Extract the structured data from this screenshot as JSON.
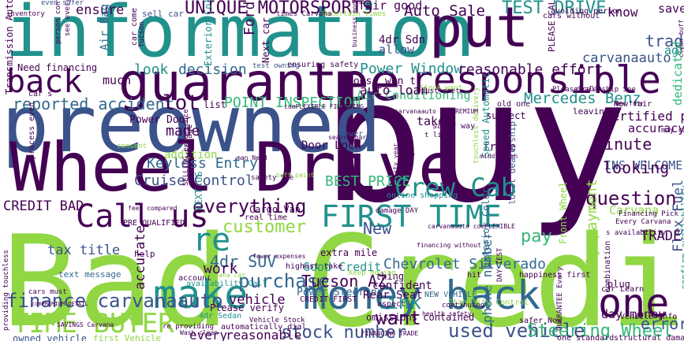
{
  "palette": {
    "background": "#ffffff",
    "dark_purple": "#440154",
    "indigo": "#3b528b",
    "blue": "#31688e",
    "teal": "#21918c",
    "sea_green": "#35b779",
    "green": "#5ec962",
    "lime": "#90d743",
    "yellow": "#fde725"
  },
  "words": [
    {
      "t": "Bad Credit",
      "c": "lime"
    },
    {
      "t": "buy",
      "c": "dark_purple"
    },
    {
      "t": "information",
      "c": "teal"
    },
    {
      "t": "preowned",
      "c": "indigo"
    },
    {
      "t": "Wheel Drive",
      "c": "dark_purple"
    },
    {
      "t": "put",
      "c": "dark_purple"
    },
    {
      "t": "back",
      "c": "dark_purple"
    },
    {
      "t": "guarantee",
      "c": "dark_purple"
    },
    {
      "t": "responsible",
      "c": "dark_purple"
    },
    {
      "t": "make",
      "c": "teal"
    },
    {
      "t": "money back",
      "c": "blue"
    },
    {
      "t": "one",
      "c": "dark_purple"
    },
    {
      "t": "Call us",
      "c": "dark_purple"
    },
    {
      "t": "FIRST TIME",
      "c": "teal"
    },
    {
      "t": "Crew Cab",
      "c": "teal"
    },
    {
      "t": "TIME BUYER",
      "c": "lime"
    },
    {
      "t": "used vehicle",
      "c": "indigo"
    },
    {
      "t": "UNIQUE MOTORSPORTS",
      "c": "dark_purple"
    },
    {
      "t": "TEST DRIVE",
      "c": "teal"
    },
    {
      "t": "Auto Sale",
      "c": "dark_purple"
    },
    {
      "t": "ensure",
      "c": "dark_purple"
    },
    {
      "t": "reported accident",
      "c": "blue"
    },
    {
      "t": "POINT INSPECTION",
      "c": "sea_green"
    },
    {
      "t": "Mercedes Benz",
      "c": "teal"
    },
    {
      "t": "Power Window",
      "c": "teal"
    },
    {
      "t": "reasonable effort",
      "c": "dark_purple"
    },
    {
      "t": "Air Conditioning",
      "c": "sea_green"
    },
    {
      "t": "auto loan",
      "c": "dark_purple"
    },
    {
      "t": "carvanaauto",
      "c": "indigo"
    },
    {
      "t": "finance carvanaauto",
      "c": "indigo"
    },
    {
      "t": "Steering Wheel",
      "c": "sea_green"
    },
    {
      "t": "stock number",
      "c": "indigo"
    },
    {
      "t": "everything",
      "c": "dark_purple"
    },
    {
      "t": "question",
      "c": "dark_purple"
    },
    {
      "t": "customer",
      "c": "lime"
    },
    {
      "t": "Cruise Control",
      "c": "indigo"
    },
    {
      "t": "Keyless Entry",
      "c": "blue"
    },
    {
      "t": "BEST PRICE",
      "c": "sea_green"
    },
    {
      "t": "purchase",
      "c": "blue"
    },
    {
      "t": "4dr SUV",
      "c": "blue"
    },
    {
      "t": "Tucson AZ",
      "c": "dark_purple"
    },
    {
      "t": "Chevrolet Silverado",
      "c": "blue"
    },
    {
      "t": "phone number",
      "c": "blue"
    },
    {
      "t": "monthly payment",
      "c": "lime"
    },
    {
      "t": "Flex Fuel",
      "c": "indigo"
    },
    {
      "t": "TRADE INS",
      "c": "dark_purple"
    },
    {
      "t": "INS WELCOME",
      "c": "indigo"
    },
    {
      "t": "minute",
      "c": "dark_purple"
    },
    {
      "t": "looking",
      "c": "dark_purple"
    },
    {
      "t": "accuracy",
      "c": "dark_purple"
    },
    {
      "t": "Certified pre",
      "c": "dark_purple"
    },
    {
      "t": "CREDIT BAD",
      "c": "dark_purple"
    },
    {
      "t": "tax title",
      "c": "indigo"
    },
    {
      "t": "work",
      "c": "dark_purple"
    },
    {
      "t": "link",
      "c": "teal"
    },
    {
      "t": "want",
      "c": "dark_purple"
    },
    {
      "t": "vehicle",
      "c": "dark_purple"
    },
    {
      "t": "accurate",
      "c": "dark_purple"
    },
    {
      "t": "Good Credit",
      "c": "teal"
    },
    {
      "t": "Power Steering",
      "c": "blue"
    },
    {
      "t": "Rear Seat",
      "c": "dark_purple"
    },
    {
      "t": "lot",
      "c": "dark_purple"
    },
    {
      "t": "look",
      "c": "teal"
    },
    {
      "t": "decision",
      "c": "blue"
    },
    {
      "t": "made",
      "c": "dark_purple"
    },
    {
      "t": "much",
      "c": "dark_purple"
    },
    {
      "t": "Door Lock",
      "c": "dark_purple"
    },
    {
      "t": "Power Door",
      "c": "dark_purple"
    },
    {
      "t": "addition",
      "c": "lime"
    },
    {
      "t": "New",
      "c": "indigo"
    },
    {
      "t": "re",
      "c": "teal"
    },
    {
      "t": "pay",
      "c": "sea_green"
    },
    {
      "t": "Carvana",
      "c": "lime"
    },
    {
      "t": "error",
      "c": "indigo"
    },
    {
      "t": "day money",
      "c": "dark_purple"
    },
    {
      "t": "frame",
      "c": "dark_purple"
    },
    {
      "t": "fair good",
      "c": "dark_purple"
    },
    {
      "t": "take",
      "c": "dark_purple"
    },
    {
      "t": "Ford F",
      "c": "dark_purple"
    },
    {
      "t": "trade",
      "c": "indigo"
    },
    {
      "t": "agree",
      "c": "teal"
    },
    {
      "t": "dedicated",
      "c": "sea_green"
    },
    {
      "t": "know",
      "c": "dark_purple"
    },
    {
      "t": "save",
      "c": "dark_purple"
    },
    {
      "t": "4dr Sdn",
      "c": "dark_purple"
    },
    {
      "t": "allow",
      "c": "indigo"
    },
    {
      "t": "Air Bag",
      "c": "blue"
    },
    {
      "t": "won t",
      "c": "dark_purple"
    },
    {
      "t": "goes",
      "c": "dark_purple"
    },
    {
      "t": "Need financing",
      "c": "dark_purple"
    },
    {
      "t": "Transmission Automatic",
      "c": "dark_purple"
    },
    {
      "t": "Exterior Color",
      "c": "teal"
    },
    {
      "t": "Next car",
      "c": "dark_purple"
    },
    {
      "t": "Front Wheel",
      "c": "lime"
    },
    {
      "t": "Speed Automatic",
      "c": "teal"
    },
    {
      "t": "local dealership",
      "c": "indigo"
    },
    {
      "t": "cars without",
      "c": "dark_purple"
    },
    {
      "t": "avoiding person",
      "c": "dark_purple"
    },
    {
      "t": "PLEASE CALL",
      "c": "dark_purple"
    },
    {
      "t": "sell car",
      "c": "indigo"
    },
    {
      "t": "inventory",
      "c": "dark_purple"
    },
    {
      "t": "even safer",
      "c": "indigo"
    },
    {
      "t": "Uncertain times",
      "c": "lime"
    },
    {
      "t": "times Carvana",
      "c": "dark_purple"
    },
    {
      "t": "ensuring safety",
      "c": "dark_purple"
    },
    {
      "t": "test owning",
      "c": "indigo"
    },
    {
      "t": "New fair",
      "c": "dark_purple"
    },
    {
      "t": "leaving",
      "c": "dark_purple"
    },
    {
      "t": "comFLEXIBLE FINANCING",
      "c": "dark_purple"
    },
    {
      "t": "real time",
      "c": "dark_purple"
    },
    {
      "t": "Cargo Van",
      "c": "dark_purple"
    },
    {
      "t": "extra mile",
      "c": "dark_purple"
    },
    {
      "t": "highest take",
      "c": "dark_purple"
    },
    {
      "t": "confident",
      "c": "dark_purple"
    },
    {
      "t": "thing",
      "c": "dark_purple"
    },
    {
      "t": "CREDIT FIRST",
      "c": "dark_purple"
    },
    {
      "t": "NEW VEHICLE",
      "c": "blue"
    },
    {
      "t": "Stability Control",
      "c": "lime"
    },
    {
      "t": "omissions contained",
      "c": "dark_purple"
    },
    {
      "t": "text message",
      "c": "blue"
    },
    {
      "t": "help",
      "c": "dark_purple"
    },
    {
      "t": "account",
      "c": "dark_purple"
    },
    {
      "t": "availability Call",
      "c": "teal"
    },
    {
      "t": "Please verify",
      "c": "dark_purple"
    },
    {
      "t": "4dr Sedan",
      "c": "teal"
    },
    {
      "t": "automatically dial",
      "c": "dark_purple"
    },
    {
      "t": "owned vehicle",
      "c": "indigo"
    },
    {
      "t": "first Vehicle",
      "c": "lime"
    },
    {
      "t": "every",
      "c": "dark_purple"
    },
    {
      "t": "reasonable",
      "c": "dark_purple"
    },
    {
      "t": "one standard",
      "c": "dark_purple"
    },
    {
      "t": "structural damage",
      "c": "dark_purple"
    },
    {
      "t": "safer Now",
      "c": "dark_purple"
    },
    {
      "t": "Vehicle Info",
      "c": "dark_purple"
    },
    {
      "t": "car Learn",
      "c": "dark_purple"
    },
    {
      "t": "combination",
      "c": "dark_purple"
    },
    {
      "t": "plug",
      "c": "dark_purple"
    },
    {
      "t": "confirm availability",
      "c": "teal"
    },
    {
      "t": "may call",
      "c": "dark_purple"
    },
    {
      "t": "subject",
      "c": "dark_purple"
    },
    {
      "t": "old one",
      "c": "dark_purple"
    },
    {
      "t": "touchless delivery",
      "c": "lime"
    },
    {
      "t": "safer way",
      "c": "dark_purple"
    },
    {
      "t": "online shopping",
      "c": "teal"
    },
    {
      "t": "damage DAY",
      "c": "dark_purple"
    },
    {
      "t": "safety See",
      "c": "dark_purple"
    },
    {
      "t": "search bar",
      "c": "dark_purple"
    },
    {
      "t": "PRE QUALIFIED",
      "c": "dark_purple"
    },
    {
      "t": "TEXT US",
      "c": "teal"
    },
    {
      "t": "SELLING experience",
      "c": "dark_purple"
    },
    {
      "t": "consent",
      "c": "lime"
    },
    {
      "t": "process even",
      "c": "dark_purple"
    },
    {
      "t": "providing touchless",
      "c": "dark_purple"
    },
    {
      "t": "cars must",
      "c": "dark_purple"
    },
    {
      "t": "Vehicle Stock",
      "c": "dark_purple"
    },
    {
      "t": "happiness first",
      "c": "dark_purple"
    },
    {
      "t": "GUARANTEE Every",
      "c": "dark_purple"
    },
    {
      "t": "DAY TEST",
      "c": "dark_purple"
    },
    {
      "t": "health safety",
      "c": "dark_purple"
    },
    {
      "t": "hit",
      "c": "dark_purple"
    },
    {
      "t": "Keep moving",
      "c": "lime"
    },
    {
      "t": "Stock want",
      "c": "lime"
    },
    {
      "t": "must meet",
      "c": "dark_purple"
    },
    {
      "t": "t list",
      "c": "dark_purple"
    },
    {
      "t": "middle man",
      "c": "dark_purple"
    },
    {
      "t": "business model",
      "c": "dark_purple"
    },
    {
      "t": "fees compared",
      "c": "dark_purple"
    },
    {
      "t": "FINANCING TRADE",
      "c": "dark_purple"
    },
    {
      "t": "re providing",
      "c": "dark_purple"
    },
    {
      "t": "Wash clean",
      "c": "dark_purple"
    },
    {
      "t": "aspect",
      "c": "dark_purple"
    },
    {
      "t": "Newer",
      "c": "indigo"
    },
    {
      "t": "Financing Pick",
      "c": "dark_purple"
    },
    {
      "t": "Every Carvana",
      "c": "dark_purple"
    },
    {
      "t": "s availability",
      "c": "dark_purple"
    },
    {
      "t": "person contact",
      "c": "dark_purple"
    },
    {
      "t": "see everything",
      "c": "dark_purple"
    },
    {
      "t": "car come",
      "c": "dark_purple"
    },
    {
      "t": "Tucson",
      "c": "dark_purple"
    },
    {
      "t": "car s",
      "c": "dark_purple"
    },
    {
      "t": "list",
      "c": "dark_purple"
    },
    {
      "t": "dealership See",
      "c": "dark_purple"
    },
    {
      "t": "clean buff",
      "c": "dark_purple"
    },
    {
      "t": "Mileage",
      "c": "dark_purple"
    },
    {
      "t": "Exterior Color",
      "c": "blue"
    },
    {
      "t": "carvanaauto comPREMIUM",
      "c": "dark_purple"
    },
    {
      "t": "comPREMIUM DETAIL",
      "c": "dark_purple"
    },
    {
      "t": "man Need",
      "c": "dark_purple"
    },
    {
      "t": "Sixty year",
      "c": "dark_purple"
    },
    {
      "t": "fewer expenses",
      "c": "dark_purple"
    },
    {
      "t": "continuing",
      "c": "dark_purple"
    },
    {
      "t": "SAVINGS Carvana",
      "c": "dark_purple"
    },
    {
      "t": "Carvana car",
      "c": "lime"
    },
    {
      "t": "buff paint",
      "c": "lime"
    },
    {
      "t": "financing without",
      "c": "dark_purple"
    },
    {
      "t": "carvanaauto comFLEXIBLE",
      "c": "dark_purple"
    },
    {
      "t": "Please call",
      "c": "dark_purple"
    },
    {
      "t": "New fair",
      "c": "dark_purple"
    }
  ]
}
